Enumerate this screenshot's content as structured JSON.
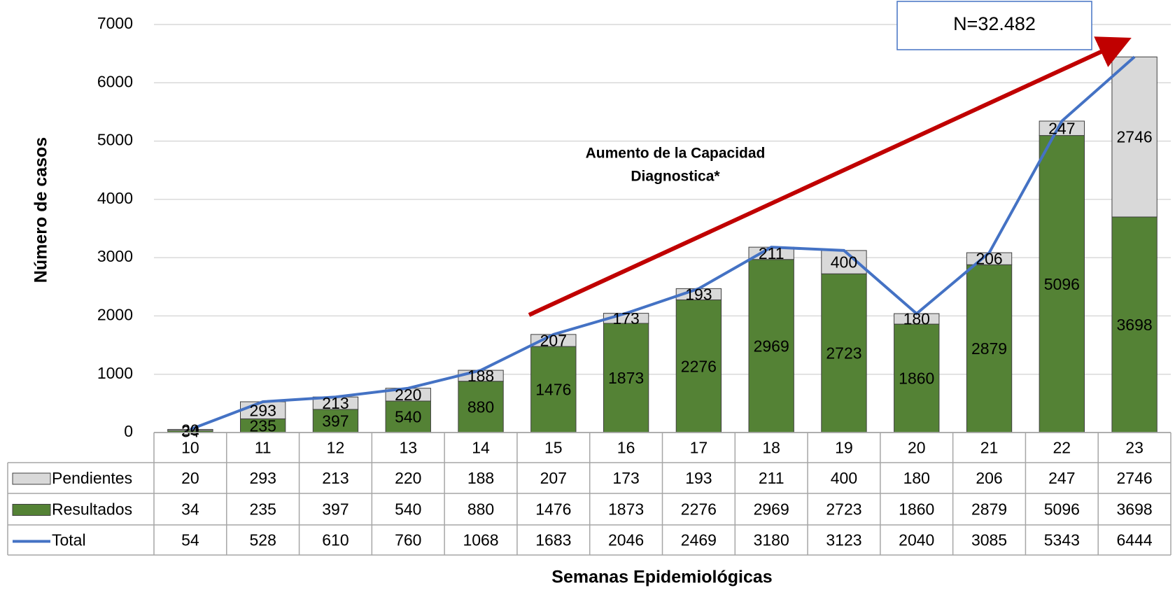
{
  "chart_data": {
    "type": "bar",
    "y_axis_label": "Número de casos",
    "x_axis_label": "Semanas Epidemiológicas",
    "annotations": [
      "Aumento de la Capacidad",
      "Diagnostica*"
    ],
    "total_box": "N=32.482",
    "categories": [
      "10",
      "11",
      "12",
      "13",
      "14",
      "15",
      "16",
      "17",
      "18",
      "19",
      "20",
      "21",
      "22",
      "23"
    ],
    "series": [
      {
        "name": "Pendientes",
        "type": "bar",
        "color": "#d9d9d9",
        "values": [
          20,
          293,
          213,
          220,
          188,
          207,
          173,
          193,
          211,
          400,
          180,
          206,
          247,
          2746
        ]
      },
      {
        "name": "Resultados",
        "type": "bar",
        "color": "#548235",
        "values": [
          34,
          235,
          397,
          540,
          880,
          1476,
          1873,
          2276,
          2969,
          2723,
          1860,
          2879,
          5096,
          3698
        ]
      },
      {
        "name": "Total",
        "type": "line",
        "color": "#4472c4",
        "values": [
          54,
          528,
          610,
          760,
          1068,
          1683,
          2046,
          2469,
          3180,
          3123,
          2040,
          3085,
          5343,
          6444
        ]
      }
    ],
    "ylim": [
      0,
      7000
    ],
    "yticks": [
      0,
      1000,
      2000,
      3000,
      4000,
      5000,
      6000,
      7000
    ],
    "grid": true
  }
}
